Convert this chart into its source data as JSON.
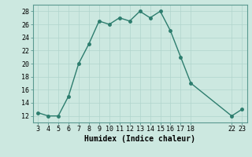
{
  "x": [
    3,
    4,
    5,
    6,
    7,
    8,
    9,
    10,
    11,
    12,
    13,
    14,
    15,
    16,
    17,
    18,
    22,
    23
  ],
  "y": [
    12.5,
    12.0,
    12.0,
    15.0,
    20.0,
    23.0,
    26.5,
    26.0,
    27.0,
    26.5,
    28.0,
    27.0,
    28.0,
    25.0,
    21.0,
    17.0,
    12.0,
    13.0
  ],
  "line_color": "#2d7d6e",
  "marker_color": "#2d7d6e",
  "bg_color": "#cce8e0",
  "grid_color": "#b0d4cc",
  "xlabel": "Humidex (Indice chaleur)",
  "xlim": [
    2.5,
    23.5
  ],
  "ylim": [
    11,
    29
  ],
  "xticks": [
    3,
    4,
    5,
    6,
    7,
    8,
    9,
    10,
    11,
    12,
    13,
    14,
    15,
    16,
    17,
    18,
    22,
    23
  ],
  "yticks": [
    12,
    14,
    16,
    18,
    20,
    22,
    24,
    26,
    28
  ],
  "xlabel_fontsize": 7,
  "tick_fontsize": 6,
  "linewidth": 1.0,
  "markersize": 2.5
}
